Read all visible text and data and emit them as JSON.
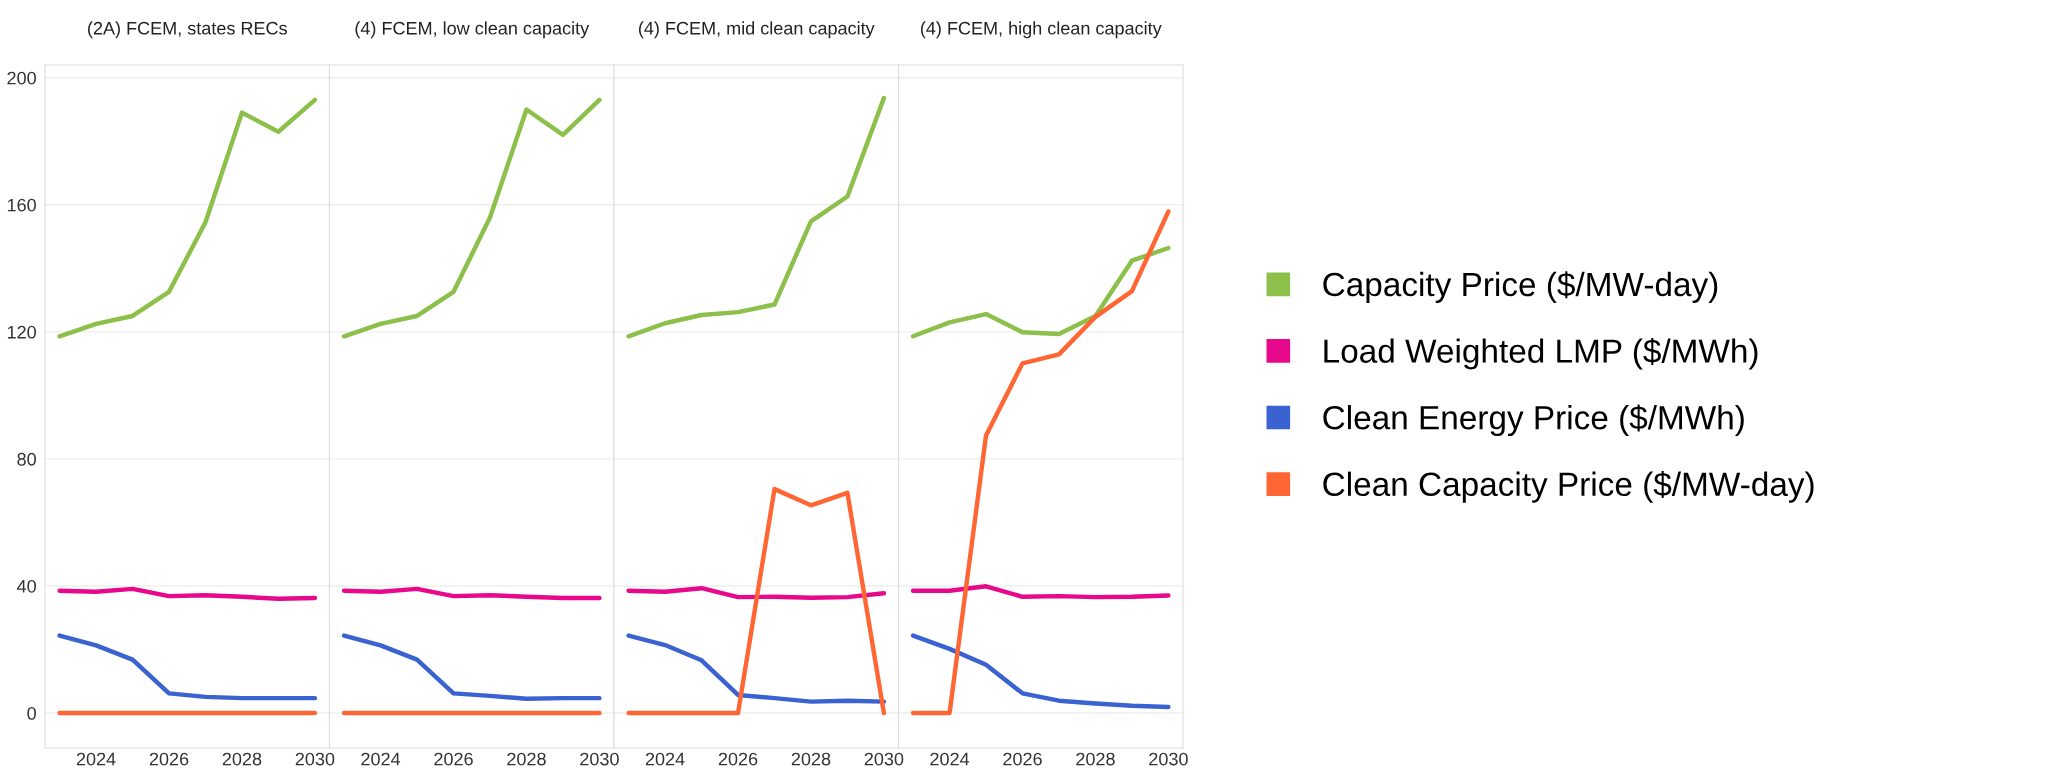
{
  "chart_data": [
    {
      "type": "line",
      "title": "(2A) FCEM, states RECs",
      "x": [
        2023,
        2024,
        2025,
        2026,
        2027,
        2028,
        2029,
        2030
      ],
      "xlim": [
        2022.6,
        2030.4
      ],
      "xticks": [
        2024,
        2026,
        2028,
        2030
      ],
      "ylim": [
        -11,
        204
      ],
      "yticks": [
        0,
        40,
        80,
        120,
        160,
        200
      ],
      "grid": "y",
      "line_style": "solid",
      "marker": "none",
      "legend": "right",
      "series": [
        {
          "name": "Capacity Price ($/MW-day)",
          "color": "#8cc04a",
          "values": [
            118.6,
            122.5,
            125,
            132.6,
            154.5,
            189,
            183,
            193
          ]
        },
        {
          "name": "Load Weighted LMP ($/MWh)",
          "color": "#e8088c",
          "values": [
            38.5,
            38.2,
            39.1,
            36.8,
            37.1,
            36.6,
            36,
            36.2
          ]
        },
        {
          "name": "Clean Energy Price ($/MWh)",
          "color": "#3a62d0",
          "values": [
            24.4,
            21.3,
            16.8,
            6.2,
            5.1,
            4.7,
            4.7,
            4.7
          ]
        },
        {
          "name": "Clean Capacity Price ($/MW-day)",
          "color": "#ff6633",
          "values": [
            0,
            0,
            0,
            0,
            0,
            0,
            0,
            0
          ]
        }
      ]
    },
    {
      "type": "line",
      "title": "(4) FCEM, low clean capacity",
      "x": [
        2023,
        2024,
        2025,
        2026,
        2027,
        2028,
        2029,
        2030
      ],
      "xlim": [
        2022.6,
        2030.4
      ],
      "xticks": [
        2024,
        2026,
        2028,
        2030
      ],
      "ylim": [
        -11,
        204
      ],
      "yticks": [
        0,
        40,
        80,
        120,
        160,
        200
      ],
      "tick_labels": "x",
      "grid": "y",
      "line_style": "solid",
      "marker": "none",
      "series": [
        {
          "color": "#8cc04a",
          "values": [
            118.6,
            122.5,
            125,
            132.6,
            156,
            190,
            182,
            193
          ]
        },
        {
          "color": "#e8088c",
          "values": [
            38.5,
            38.2,
            39.1,
            36.8,
            37.1,
            36.6,
            36.2,
            36.2
          ]
        },
        {
          "color": "#3a62d0",
          "values": [
            24.4,
            21.3,
            16.8,
            6.2,
            5.4,
            4.5,
            4.7,
            4.7
          ]
        },
        {
          "color": "#ff6633",
          "values": [
            0,
            0,
            0,
            0,
            0,
            0,
            0,
            0
          ]
        }
      ]
    },
    {
      "type": "line",
      "title": "(4) FCEM, mid clean capacity",
      "x": [
        2023,
        2024,
        2025,
        2026,
        2027,
        2028,
        2029,
        2030
      ],
      "xlim": [
        2022.6,
        2030.4
      ],
      "xticks": [
        2024,
        2026,
        2028,
        2030
      ],
      "ylim": [
        -11,
        204
      ],
      "yticks": [
        0,
        40,
        80,
        120,
        160,
        200
      ],
      "tick_labels": "x",
      "grid": "y",
      "line_style": "solid",
      "marker": "none",
      "series": [
        {
          "color": "#8cc04a",
          "values": [
            118.6,
            122.7,
            125.3,
            126.2,
            128.6,
            154.8,
            162.6,
            193.6
          ]
        },
        {
          "color": "#e8088c",
          "values": [
            38.5,
            38.2,
            39.3,
            36.5,
            36.6,
            36.3,
            36.5,
            37.7
          ]
        },
        {
          "color": "#3a62d0",
          "values": [
            24.4,
            21.4,
            16.6,
            5.7,
            4.7,
            3.6,
            3.9,
            3.6
          ]
        },
        {
          "color": "#ff6633",
          "values": [
            0,
            0,
            0,
            0,
            70.5,
            65.4,
            69.3,
            0
          ]
        }
      ]
    },
    {
      "type": "line",
      "title": "(4) FCEM, high clean capacity",
      "x": [
        2023,
        2024,
        2025,
        2026,
        2027,
        2028,
        2029,
        2030
      ],
      "xlim": [
        2022.6,
        2030.4
      ],
      "xticks": [
        2024,
        2026,
        2028,
        2030
      ],
      "ylim": [
        -11,
        204
      ],
      "yticks": [
        0,
        40,
        80,
        120,
        160,
        200
      ],
      "tick_labels": "x",
      "grid": "y",
      "line_style": "solid",
      "marker": "none",
      "series": [
        {
          "color": "#8cc04a",
          "values": [
            118.6,
            123,
            125.6,
            119.9,
            119.3,
            125,
            142.4,
            146.4
          ]
        },
        {
          "color": "#e8088c",
          "values": [
            38.5,
            38.5,
            39.9,
            36.6,
            36.8,
            36.5,
            36.6,
            37
          ]
        },
        {
          "color": "#3a62d0",
          "values": [
            24.4,
            20.2,
            15.2,
            6.2,
            3.9,
            3,
            2.3,
            1.9
          ]
        },
        {
          "color": "#ff6633",
          "values": [
            0,
            0,
            87.4,
            110.1,
            112.9,
            124.7,
            132.8,
            157.9
          ]
        }
      ]
    }
  ]
}
